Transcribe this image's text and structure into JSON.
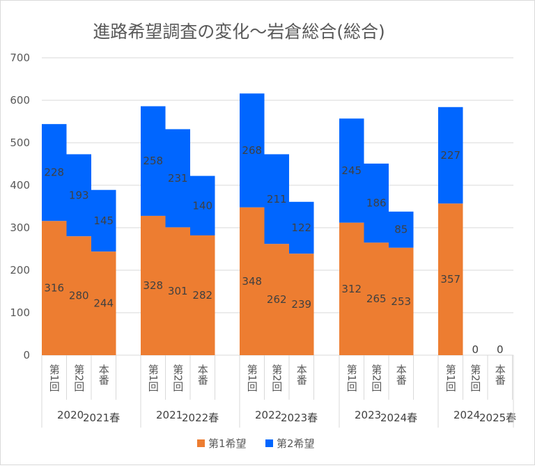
{
  "chart_data": {
    "type": "bar",
    "stacked": true,
    "title": "進路希望調査の変化～岩倉総合(総合)",
    "ylim": [
      0,
      700
    ],
    "yticks": [
      0,
      100,
      200,
      300,
      400,
      500,
      600,
      700
    ],
    "grid": true,
    "legend_position": "bottom",
    "groups": [
      {
        "label": "2020",
        "sublabel": "2021春",
        "categories": [
          "第1回",
          "第2回",
          "本番"
        ]
      },
      {
        "label": "2021",
        "sublabel": "2022春",
        "categories": [
          "第1回",
          "第2回",
          "本番"
        ]
      },
      {
        "label": "2022",
        "sublabel": "2023春",
        "categories": [
          "第1回",
          "第2回",
          "本番"
        ]
      },
      {
        "label": "2023",
        "sublabel": "2024春",
        "categories": [
          "第1回",
          "第2回",
          "本番"
        ]
      },
      {
        "label": "2024",
        "sublabel": "2025春",
        "categories": [
          "第1回",
          "第2回",
          "本番"
        ]
      }
    ],
    "series": [
      {
        "name": "第1希望",
        "color": "#ed7d31",
        "values": [
          [
            316,
            280,
            244
          ],
          [
            328,
            301,
            282
          ],
          [
            348,
            262,
            239
          ],
          [
            312,
            265,
            253
          ],
          [
            357,
            0,
            0
          ]
        ]
      },
      {
        "name": "第2希望",
        "color": "#0066ff",
        "values": [
          [
            228,
            193,
            145
          ],
          [
            258,
            231,
            140
          ],
          [
            268,
            211,
            122
          ],
          [
            245,
            186,
            85
          ],
          [
            227,
            0,
            0
          ]
        ]
      }
    ]
  }
}
